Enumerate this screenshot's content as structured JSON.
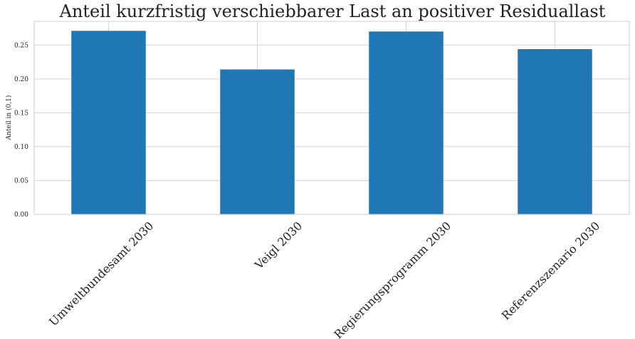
{
  "chart_data": {
    "type": "bar",
    "title": "Anteil kurzfristig verschiebbarer Last an positiver Residuallast",
    "xlabel": "",
    "ylabel": "Anteil in (0,1)",
    "categories": [
      "Umweltbundesamt 2030",
      "Veigl 2030",
      "Regierungsprogramm 2030",
      "Referenzszenario 2030"
    ],
    "values": [
      0.271,
      0.214,
      0.27,
      0.244
    ],
    "ylim": [
      0,
      0.285
    ],
    "yticks": [
      "0.00",
      "0.05",
      "0.10",
      "0.15",
      "0.20",
      "0.25"
    ],
    "grid": true,
    "bar_color": "#1f77b4"
  }
}
